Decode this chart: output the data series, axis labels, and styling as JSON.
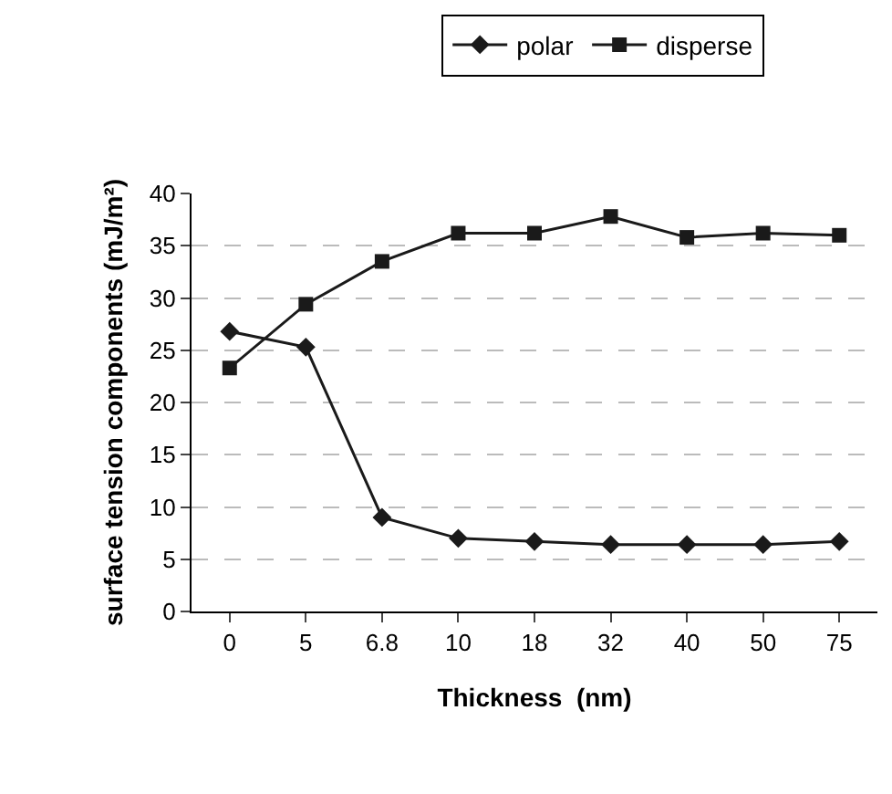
{
  "chart_data": {
    "type": "line",
    "xlabel": "Thickness  (nm)",
    "ylabel": "surface tension components (mJ/m²)",
    "categories": [
      "0",
      "5",
      "6.8",
      "10",
      "18",
      "32",
      "40",
      "50",
      "75"
    ],
    "series": [
      {
        "name": "polar",
        "color": "#1a1a1a",
        "marker": "diamond",
        "values": [
          26.8,
          25.3,
          9,
          7,
          6.7,
          6.4,
          6.4,
          6.4,
          6.7
        ]
      },
      {
        "name": "disperse",
        "color": "#1a1a1a",
        "marker": "square",
        "values": [
          23.3,
          29.4,
          33.5,
          36.2,
          36.2,
          37.8,
          35.8,
          36.2,
          36
        ]
      }
    ],
    "ylim": [
      0,
      40
    ],
    "yticks": [
      0,
      5,
      10,
      15,
      20,
      25,
      30,
      35,
      40
    ],
    "grid": "y",
    "legend": "top",
    "line_style": "solid"
  }
}
